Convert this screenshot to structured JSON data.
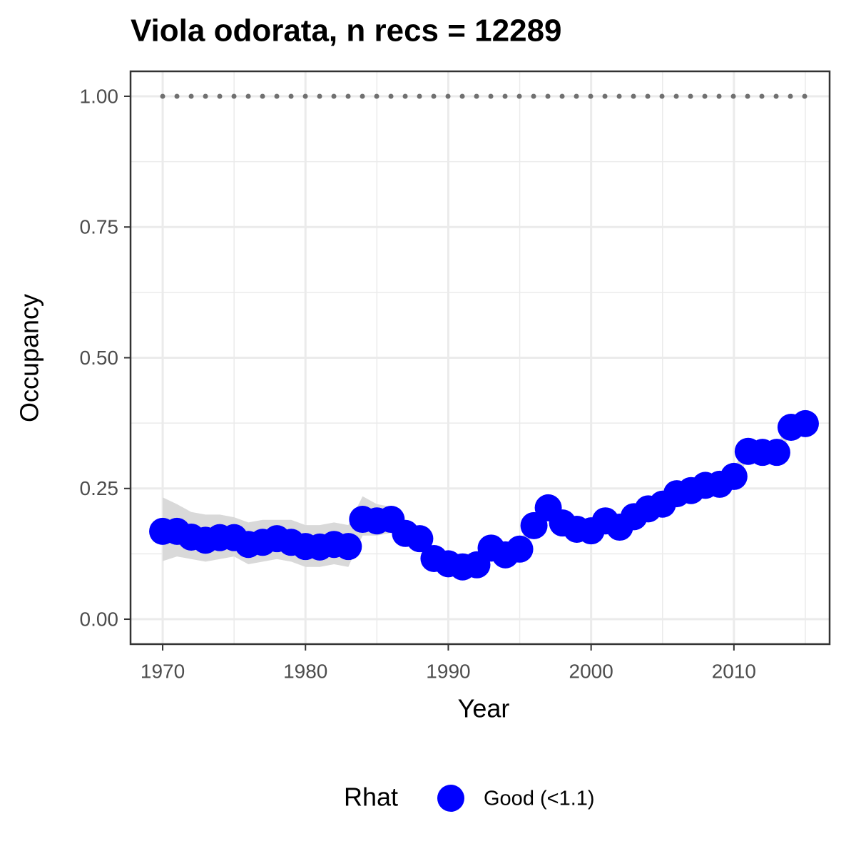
{
  "chart_data": {
    "type": "line",
    "title": "Viola odorata, n recs = 12289",
    "x_label": "Year",
    "y_label": "Occupancy",
    "legend_title": "Rhat",
    "legend_position": "bottom",
    "x": [
      1970,
      1971,
      1972,
      1973,
      1974,
      1975,
      1976,
      1977,
      1978,
      1979,
      1980,
      1981,
      1982,
      1983,
      1984,
      1985,
      1986,
      1987,
      1988,
      1989,
      1990,
      1991,
      1992,
      1993,
      1994,
      1995,
      1996,
      1997,
      1998,
      1999,
      2000,
      2001,
      2002,
      2003,
      2004,
      2005,
      2006,
      2007,
      2008,
      2009,
      2010,
      2011,
      2012,
      2013,
      2014,
      2015
    ],
    "series": [
      {
        "name": "Good (<1.1)",
        "color": "#0000ff",
        "values": [
          0.168,
          0.168,
          0.157,
          0.151,
          0.156,
          0.156,
          0.143,
          0.147,
          0.154,
          0.147,
          0.139,
          0.138,
          0.143,
          0.139,
          0.191,
          0.188,
          0.191,
          0.164,
          0.154,
          0.116,
          0.106,
          0.1,
          0.104,
          0.136,
          0.123,
          0.134,
          0.179,
          0.213,
          0.184,
          0.172,
          0.169,
          0.188,
          0.176,
          0.196,
          0.211,
          0.22,
          0.24,
          0.246,
          0.256,
          0.258,
          0.273,
          0.321,
          0.319,
          0.319,
          0.367,
          0.374
        ],
        "lower": [
          0.111,
          0.12,
          0.115,
          0.11,
          0.115,
          0.12,
          0.105,
          0.11,
          0.115,
          0.11,
          0.1,
          0.1,
          0.105,
          0.1,
          0.16,
          0.16,
          0.165,
          0.145,
          0.135,
          0.1,
          0.09,
          0.085,
          0.088,
          0.12,
          0.108,
          0.12,
          0.165,
          0.198,
          0.17,
          0.158,
          0.155,
          0.173,
          0.162,
          0.182,
          0.197,
          0.206,
          0.226,
          0.232,
          0.242,
          0.243,
          0.258,
          0.308,
          0.306,
          0.305,
          0.355,
          0.36
        ],
        "upper": [
          0.233,
          0.22,
          0.205,
          0.2,
          0.2,
          0.195,
          0.185,
          0.19,
          0.19,
          0.19,
          0.18,
          0.18,
          0.185,
          0.18,
          0.235,
          0.22,
          0.215,
          0.185,
          0.175,
          0.135,
          0.125,
          0.12,
          0.122,
          0.155,
          0.14,
          0.15,
          0.195,
          0.23,
          0.2,
          0.188,
          0.186,
          0.205,
          0.192,
          0.212,
          0.227,
          0.236,
          0.256,
          0.262,
          0.272,
          0.275,
          0.29,
          0.335,
          0.333,
          0.334,
          0.38,
          0.39
        ]
      }
    ],
    "ribbon_color": "#d9d9d9",
    "reference_line": 1,
    "reference_line_color": "#707070",
    "xlim": [
      1967.75,
      2016.7
    ],
    "ylim": [
      -0.0477,
      1.0477
    ],
    "xticks": [
      1970,
      1980,
      1990,
      2000,
      2010
    ],
    "yticks": [
      {
        "value": 0,
        "label": "0.00"
      },
      {
        "value": 0.25,
        "label": "0.25"
      },
      {
        "value": 0.5,
        "label": "0.50"
      },
      {
        "value": 0.75,
        "label": "0.75"
      },
      {
        "value": 1,
        "label": "1.00"
      }
    ],
    "x_minor_ticks": [
      1975,
      1985,
      1995,
      2005,
      2015
    ],
    "y_minor_ticks": [
      0.125,
      0.375,
      0.625,
      0.875
    ],
    "grid": true
  }
}
